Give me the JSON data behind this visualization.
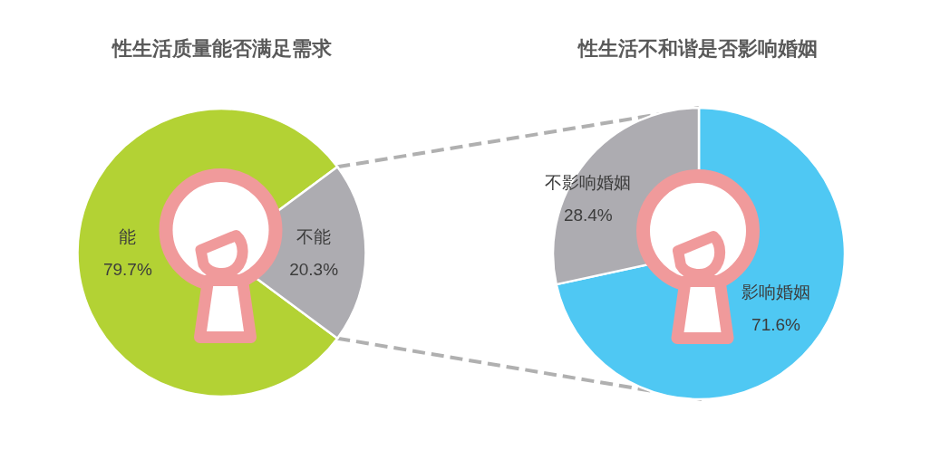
{
  "chart_data": [
    {
      "type": "pie",
      "title": "性生活质量能否满足需求",
      "categories": [
        "能",
        "不能"
      ],
      "values": [
        79.7,
        20.3
      ],
      "colors": [
        "#b3d234",
        "#adacb1"
      ],
      "value_labels": [
        "79.7%",
        "20.3%"
      ]
    },
    {
      "type": "pie",
      "title": "性生活不和谐是否影响婚姻",
      "categories": [
        "影响婚姻",
        "不影响婚姻"
      ],
      "values": [
        71.6,
        28.4
      ],
      "colors": [
        "#4fc8f3",
        "#adacb1"
      ],
      "value_labels": [
        "71.6%",
        "28.4%"
      ]
    }
  ]
}
